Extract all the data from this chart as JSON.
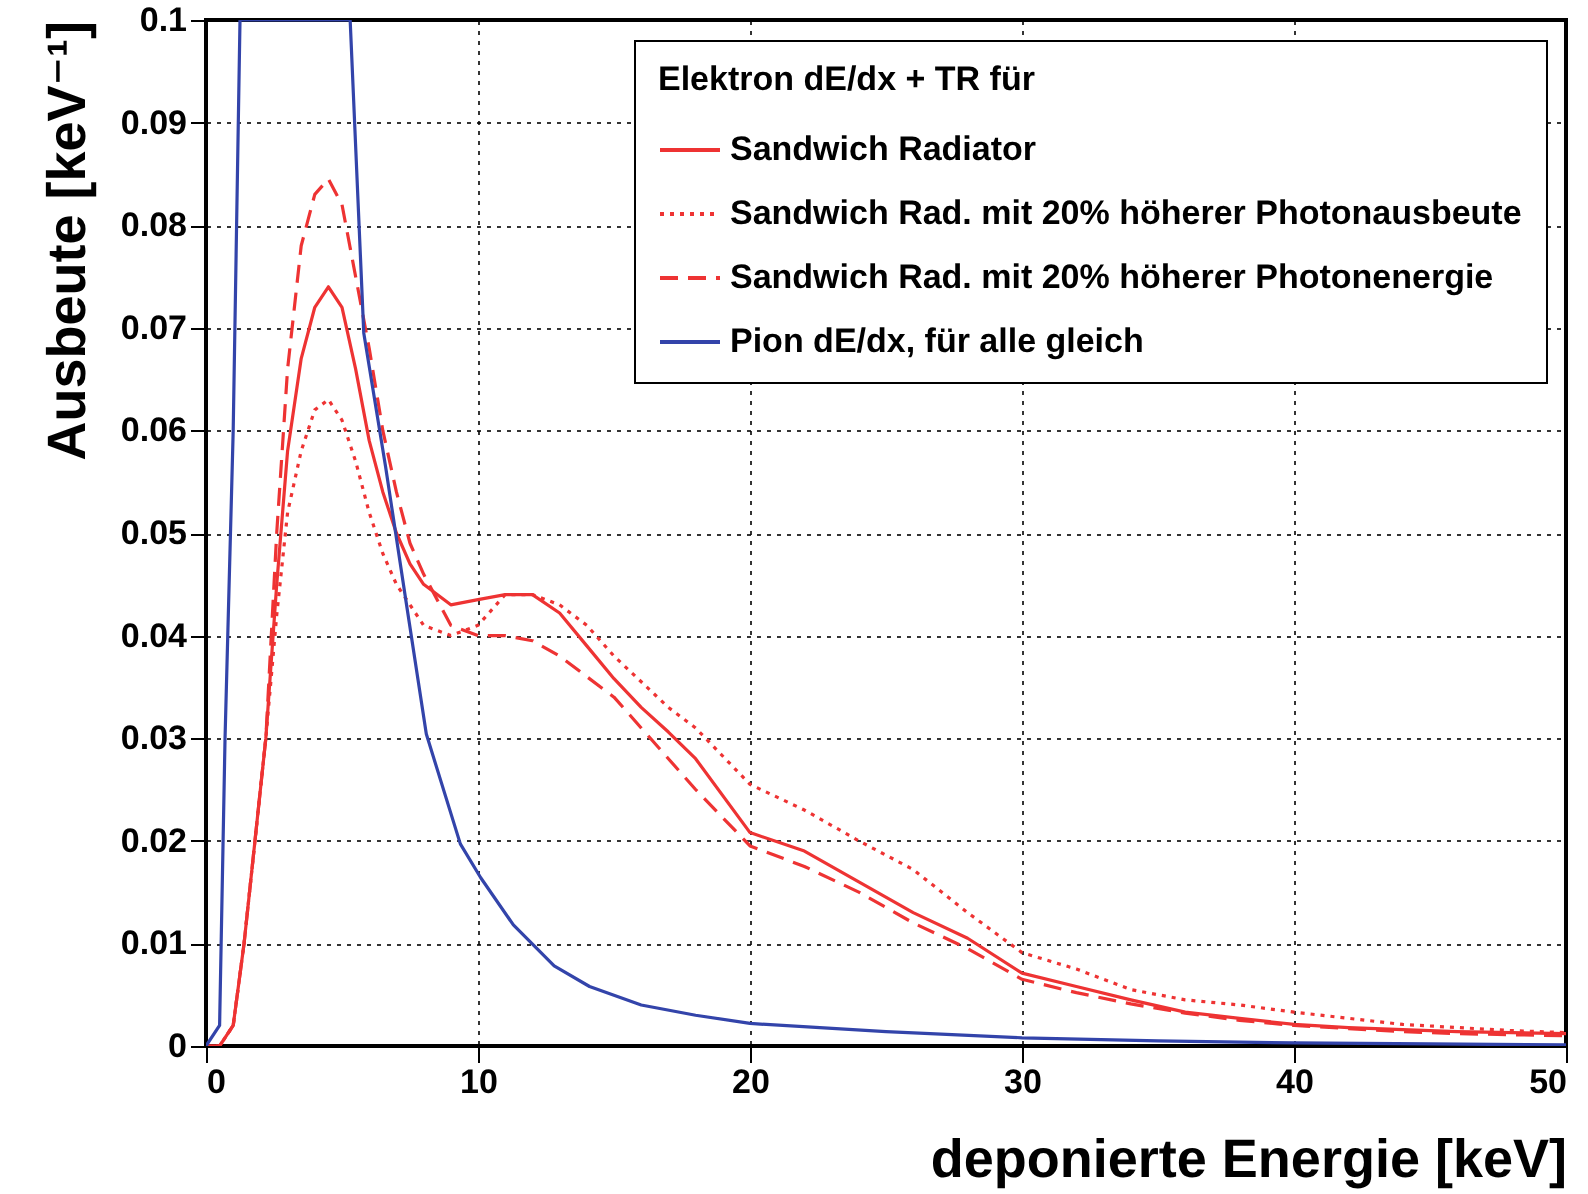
{
  "chart_data": {
    "type": "line",
    "xlabel": "deponierte Energie [keV]",
    "ylabel": "Ausbeute [keV⁻¹]",
    "legend_title": "Elektron dE/dx + TR für",
    "legend": "top right",
    "grid": true,
    "xlim": [
      0,
      50
    ],
    "ylim": [
      0,
      0.1
    ],
    "xticks": [
      0,
      10,
      20,
      30,
      40,
      50
    ],
    "yticks": [
      0,
      0.01,
      0.02,
      0.03,
      0.04,
      0.05,
      0.06,
      0.07,
      0.08,
      0.09,
      0.1
    ],
    "x": [
      0,
      0.5,
      1,
      1.4,
      1.8,
      2.2,
      2.6,
      3,
      3.5,
      4,
      4.5,
      5,
      5.5,
      6,
      6.5,
      7,
      7.5,
      8,
      9,
      10,
      11,
      12,
      13,
      14,
      15,
      16,
      17,
      18,
      20,
      22,
      24,
      26,
      28,
      30,
      32,
      34,
      36,
      38,
      40,
      42,
      44,
      46,
      48,
      50
    ],
    "series": [
      {
        "name": "Sandwich Radiator",
        "color": "#ee3333",
        "line_style": "solid",
        "values": [
          0,
          0,
          0.002,
          0.01,
          0.02,
          0.03,
          0.045,
          0.058,
          0.067,
          0.072,
          0.074,
          0.072,
          0.066,
          0.059,
          0.054,
          0.05,
          0.047,
          0.045,
          0.043,
          0.0435,
          0.044,
          0.044,
          0.0422,
          0.039,
          0.0358,
          0.033,
          0.0306,
          0.028,
          0.0208,
          0.019,
          0.016,
          0.013,
          0.0105,
          0.0071,
          0.0058,
          0.0045,
          0.0033,
          0.0027,
          0.0021,
          0.0018,
          0.0016,
          0.0014,
          0.0013,
          0.0012
        ]
      },
      {
        "name": "Sandwich Rad. mit 20% höherer Photonausbeute",
        "color": "#ee3333",
        "line_style": "dotted",
        "values": [
          0,
          0,
          0.002,
          0.01,
          0.02,
          0.03,
          0.042,
          0.052,
          0.058,
          0.062,
          0.063,
          0.061,
          0.057,
          0.052,
          0.048,
          0.045,
          0.043,
          0.041,
          0.04,
          0.041,
          0.044,
          0.044,
          0.043,
          0.041,
          0.038,
          0.0355,
          0.033,
          0.031,
          0.0255,
          0.023,
          0.02,
          0.0172,
          0.013,
          0.0091,
          0.0075,
          0.0055,
          0.0045,
          0.004,
          0.0033,
          0.0027,
          0.0021,
          0.0018,
          0.0015,
          0.0013
        ]
      },
      {
        "name": "Sandwich Rad. mit 20% höherer Photonenergie",
        "color": "#ee3333",
        "line_style": "dashed",
        "values": [
          0,
          0,
          0.002,
          0.01,
          0.02,
          0.03,
          0.05,
          0.066,
          0.078,
          0.083,
          0.0845,
          0.082,
          0.075,
          0.068,
          0.06,
          0.054,
          0.049,
          0.046,
          0.041,
          0.04,
          0.04,
          0.0395,
          0.038,
          0.036,
          0.034,
          0.031,
          0.028,
          0.025,
          0.0195,
          0.0175,
          0.015,
          0.012,
          0.0095,
          0.0065,
          0.0052,
          0.0041,
          0.0032,
          0.0025,
          0.002,
          0.0017,
          0.0014,
          0.0012,
          0.0011,
          0.001
        ]
      },
      {
        "name": "Pion dE/dx, für alle gleich",
        "color": "#3344aa",
        "line_style": "solid",
        "x": [
          0,
          0.5,
          0.7,
          1,
          1.25,
          5.3,
          5.8,
          6.6,
          7.35,
          8.1,
          9.35,
          10.1,
          11.3,
          12.8,
          14.1,
          16,
          18,
          20,
          25,
          30,
          35,
          40,
          45,
          50
        ],
        "values": [
          0,
          0.002,
          0.03,
          0.06,
          0.1,
          0.1,
          0.0695,
          0.0565,
          0.0434,
          0.0304,
          0.0197,
          0.0164,
          0.0118,
          0.0078,
          0.0058,
          0.004,
          0.003,
          0.0022,
          0.0014,
          0.0008,
          0.0005,
          0.0003,
          0.0002,
          0.0001
        ]
      }
    ]
  }
}
